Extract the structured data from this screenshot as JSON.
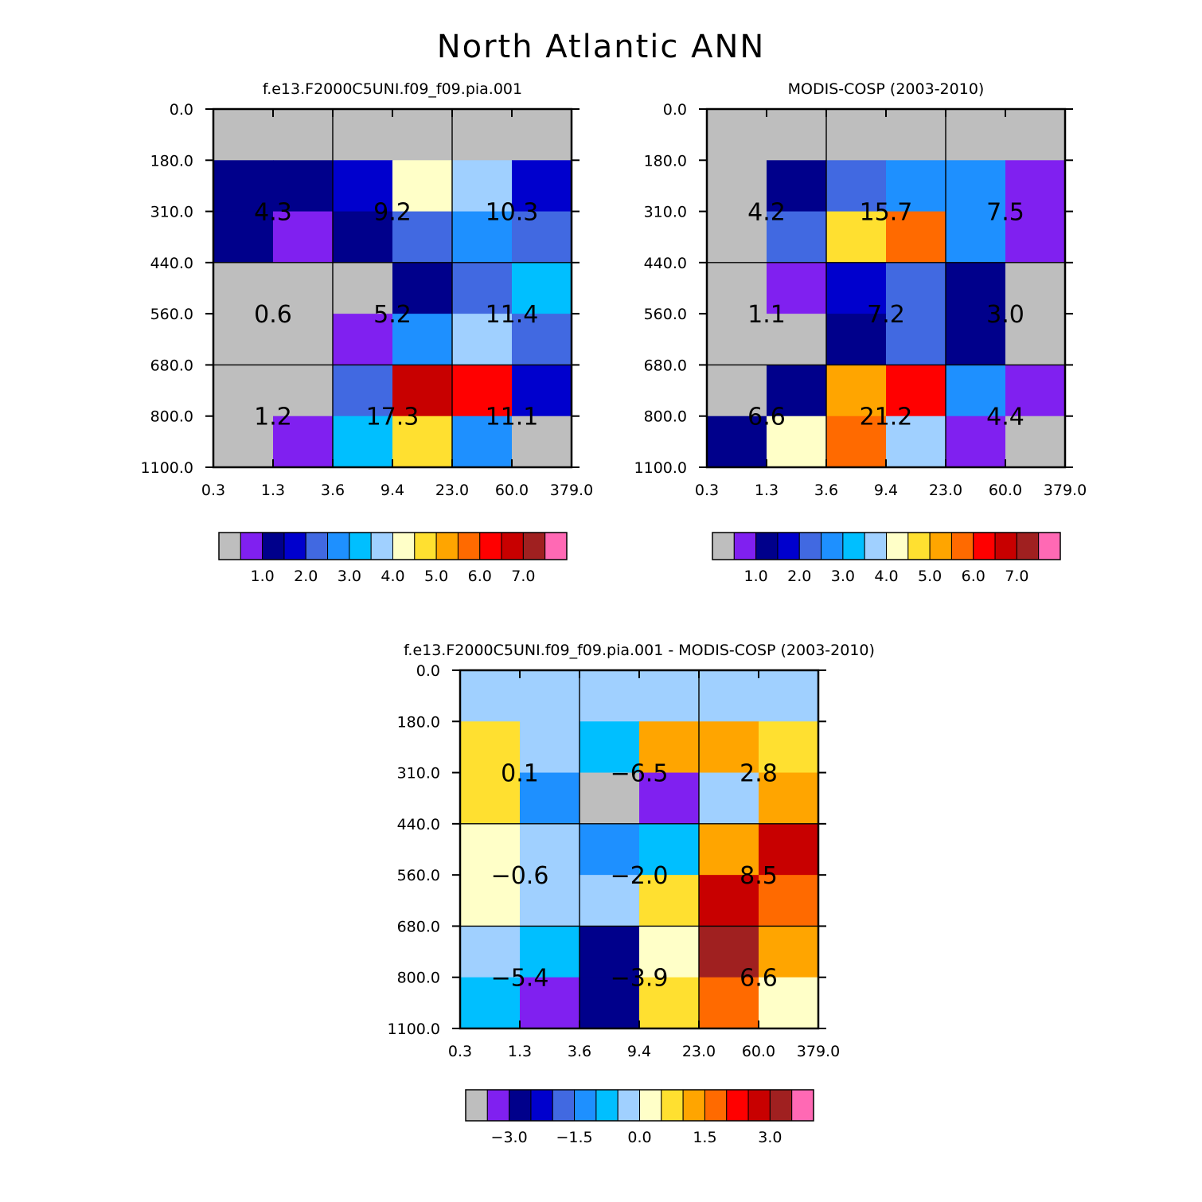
{
  "figure_title": "North Atlantic ANN",
  "chart_data": [
    {
      "type": "heatmap",
      "title": "f.e13.F2000C5UNI.f09_f09.pia.001",
      "x_tick_labels": [
        "0.3",
        "1.3",
        "3.6",
        "9.4",
        "23.0",
        "60.0",
        "379.0"
      ],
      "y_tick_labels": [
        "0.0",
        "180.0",
        "310.0",
        "440.0",
        "560.0",
        "680.0",
        "800.0",
        "1100.0"
      ],
      "cell_colors": [
        [
          "gray",
          "gray",
          "gray",
          "gray",
          "gray",
          "gray"
        ],
        [
          "navy",
          "navy",
          "blue",
          "cream",
          "lightblue",
          "blue"
        ],
        [
          "navy",
          "purple",
          "navy",
          "royal",
          "dodger",
          "royal"
        ],
        [
          "gray",
          "gray",
          "gray",
          "navy",
          "royal",
          "skyblue"
        ],
        [
          "gray",
          "gray",
          "purple",
          "dodger",
          "lightblue",
          "royal"
        ],
        [
          "gray",
          "gray",
          "royal",
          "crimson",
          "red",
          "blue"
        ],
        [
          "gray",
          "purple",
          "skyblue",
          "yellow",
          "dodger",
          "gray"
        ]
      ],
      "box_labels": [
        [
          "4.3",
          "9.2",
          "10.3"
        ],
        [
          "0.6",
          "5.2",
          "11.4"
        ],
        [
          "1.2",
          "17.3",
          "11.1"
        ]
      ],
      "colorbar": {
        "colors": [
          "gray",
          "purple",
          "navy",
          "blue",
          "royal",
          "dodger",
          "skyblue",
          "lightblue",
          "cream",
          "yellow",
          "orange",
          "darkorange",
          "red",
          "crimson",
          "brown",
          "pink"
        ],
        "tick_labels": [
          "1.0",
          "2.0",
          "3.0",
          "4.0",
          "5.0",
          "6.0",
          "7.0"
        ]
      }
    },
    {
      "type": "heatmap",
      "title": "MODIS-COSP (2003-2010)",
      "x_tick_labels": [
        "0.3",
        "1.3",
        "3.6",
        "9.4",
        "23.0",
        "60.0",
        "379.0"
      ],
      "y_tick_labels": [
        "0.0",
        "180.0",
        "310.0",
        "440.0",
        "560.0",
        "680.0",
        "800.0",
        "1100.0"
      ],
      "cell_colors": [
        [
          "gray",
          "gray",
          "gray",
          "gray",
          "gray",
          "gray"
        ],
        [
          "gray",
          "navy",
          "royal",
          "dodger",
          "dodger",
          "purple"
        ],
        [
          "gray",
          "royal",
          "yellow",
          "darkorange",
          "dodger",
          "purple"
        ],
        [
          "gray",
          "purple",
          "blue",
          "royal",
          "navy",
          "gray"
        ],
        [
          "gray",
          "gray",
          "navy",
          "royal",
          "navy",
          "gray"
        ],
        [
          "gray",
          "navy",
          "orange",
          "red",
          "dodger",
          "purple"
        ],
        [
          "navy",
          "cream",
          "darkorange",
          "lightblue",
          "purple",
          "gray"
        ]
      ],
      "box_labels": [
        [
          "4.2",
          "15.7",
          "7.5"
        ],
        [
          "1.1",
          "7.2",
          "3.0"
        ],
        [
          "6.6",
          "21.2",
          "4.4"
        ]
      ],
      "colorbar": {
        "colors": [
          "gray",
          "purple",
          "navy",
          "blue",
          "royal",
          "dodger",
          "skyblue",
          "lightblue",
          "cream",
          "yellow",
          "orange",
          "darkorange",
          "red",
          "crimson",
          "brown",
          "pink"
        ],
        "tick_labels": [
          "1.0",
          "2.0",
          "3.0",
          "4.0",
          "5.0",
          "6.0",
          "7.0"
        ]
      }
    },
    {
      "type": "heatmap",
      "title": "f.e13.F2000C5UNI.f09_f09.pia.001 - MODIS-COSP (2003-2010)",
      "x_tick_labels": [
        "0.3",
        "1.3",
        "3.6",
        "9.4",
        "23.0",
        "60.0",
        "379.0"
      ],
      "y_tick_labels": [
        "0.0",
        "180.0",
        "310.0",
        "440.0",
        "560.0",
        "680.0",
        "800.0",
        "1100.0"
      ],
      "cell_colors": [
        [
          "lightblue",
          "lightblue",
          "lightblue",
          "lightblue",
          "lightblue",
          "lightblue"
        ],
        [
          "yellow",
          "lightblue",
          "skyblue",
          "orange",
          "orange",
          "yellow"
        ],
        [
          "yellow",
          "dodger",
          "gray",
          "purple",
          "lightblue",
          "orange"
        ],
        [
          "cream",
          "lightblue",
          "dodger",
          "skyblue",
          "orange",
          "crimson"
        ],
        [
          "cream",
          "lightblue",
          "lightblue",
          "yellow",
          "crimson",
          "darkorange"
        ],
        [
          "lightblue",
          "skyblue",
          "navy",
          "cream",
          "brown",
          "orange"
        ],
        [
          "skyblue",
          "purple",
          "navy",
          "yellow",
          "darkorange",
          "cream"
        ]
      ],
      "box_labels": [
        [
          "0.1",
          "-6.5",
          "2.8"
        ],
        [
          "-0.6",
          "-2.0",
          "8.5"
        ],
        [
          "-5.4",
          "-3.9",
          "6.6"
        ]
      ],
      "colorbar": {
        "colors": [
          "gray",
          "purple",
          "navy",
          "blue",
          "royal",
          "dodger",
          "skyblue",
          "lightblue",
          "cream",
          "yellow",
          "orange",
          "darkorange",
          "red",
          "crimson",
          "brown",
          "pink"
        ],
        "tick_labels": [
          "-3.0",
          "-1.5",
          "0.0",
          "1.5",
          "3.0"
        ]
      }
    }
  ],
  "palette": {
    "gray": "#bebebe",
    "purple": "#8020f0",
    "navy": "#00008b",
    "blue": "#0000cd",
    "royal": "#4169e1",
    "dodger": "#1e90ff",
    "skyblue": "#00bfff",
    "lightblue": "#a0d0ff",
    "cream": "#ffffc8",
    "yellow": "#ffe030",
    "orange": "#ffa500",
    "darkorange": "#ff6a00",
    "red": "#ff0000",
    "crimson": "#c80000",
    "brown": "#a02020",
    "pink": "#ff69b4"
  }
}
